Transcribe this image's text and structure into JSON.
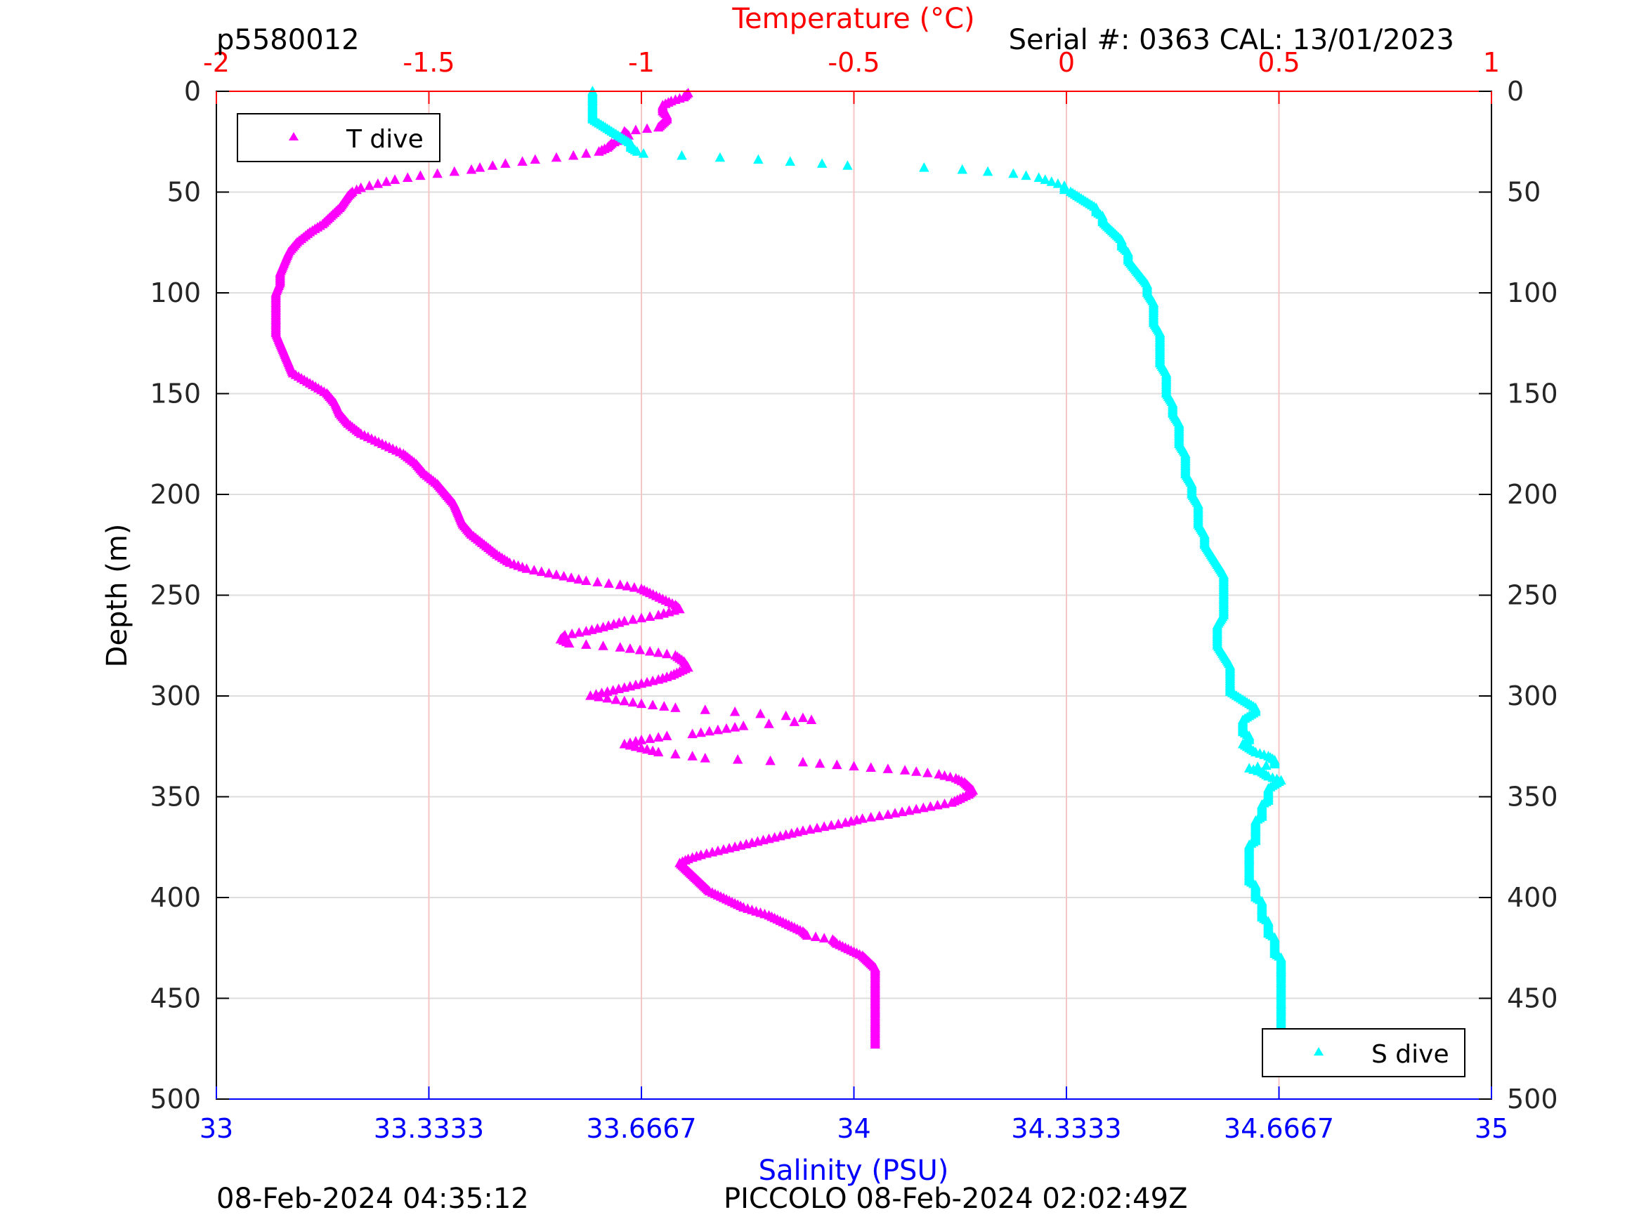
{
  "header": {
    "profile_id": "p5580012",
    "serial_cal": "Serial #: 0363  CAL: 13/01/2023"
  },
  "footer": {
    "left_timestamp": "08-Feb-2024 04:35:12",
    "right_text": "PICCOLO 08-Feb-2024 02:02:49Z"
  },
  "colors": {
    "temperature": "#ff00ff",
    "salinity": "#00ffff",
    "top_axis": "#ff0000",
    "bottom_axis": "#0000ff",
    "grid_v": "#f5c6c6",
    "grid_h": "#dddddd"
  },
  "chart_data": {
    "type": "scatter",
    "grid": true,
    "ylabel": "Depth (m)",
    "y_axis": {
      "range": [
        0,
        500
      ],
      "reversed": true,
      "ticks": [
        0,
        50,
        100,
        150,
        200,
        250,
        300,
        350,
        400,
        450,
        500
      ],
      "tick_labels": [
        "0",
        "50",
        "100",
        "150",
        "200",
        "250",
        "300",
        "350",
        "400",
        "450",
        "500"
      ]
    },
    "x_top": {
      "label": "Temperature (°C)",
      "range": [
        -2,
        1
      ],
      "ticks": [
        -2,
        -1.5,
        -1,
        -0.5,
        0,
        0.5,
        1
      ],
      "tick_labels": [
        "-2",
        "-1.5",
        "-1",
        "-0.5",
        "0",
        "0.5",
        "1"
      ]
    },
    "x_bottom": {
      "label": "Salinity (PSU)",
      "range": [
        33,
        35
      ],
      "ticks": [
        33,
        33.3333,
        33.6667,
        34,
        34.3333,
        34.6667,
        35
      ],
      "tick_labels": [
        "33",
        "33.3333",
        "33.6667",
        "34",
        "34.3333",
        "34.6667",
        "35"
      ]
    },
    "legends": [
      {
        "label": "T dive",
        "placement": "top-left"
      },
      {
        "label": "S dive",
        "placement": "bottom-right"
      }
    ],
    "series": [
      {
        "name": "T dive",
        "axis": "temperature",
        "marker": "triangle",
        "depth": [
          1,
          3,
          5,
          7,
          9,
          10,
          12,
          14,
          16,
          18,
          20,
          22,
          24,
          26,
          28,
          30,
          31,
          32,
          33,
          34,
          35,
          36,
          37,
          38,
          39,
          40,
          41,
          42,
          43,
          44,
          45,
          46,
          47,
          48,
          49,
          50,
          52,
          55,
          58,
          62,
          66,
          70,
          75,
          80,
          85,
          90,
          95,
          100,
          105,
          110,
          115,
          120,
          125,
          130,
          135,
          140,
          145,
          150,
          155,
          160,
          165,
          170,
          175,
          180,
          185,
          190,
          195,
          200,
          205,
          210,
          215,
          220,
          225,
          230,
          234,
          237,
          240,
          243,
          245,
          247,
          249,
          252,
          255,
          257,
          260,
          263,
          266,
          268,
          270,
          272,
          274,
          276,
          278,
          280,
          283,
          286,
          288,
          290,
          292,
          294,
          296,
          298,
          300,
          302,
          304,
          306,
          307,
          308,
          309,
          310,
          311,
          312,
          313,
          314,
          315,
          317,
          319,
          320,
          322,
          324,
          326,
          328,
          329,
          330,
          331,
          333,
          335,
          337,
          339,
          341,
          343,
          345,
          347,
          349,
          351,
          353,
          355,
          357,
          359,
          361,
          363,
          365,
          367,
          369,
          371,
          373,
          375,
          377,
          379,
          381,
          383,
          385,
          387,
          389,
          391,
          393,
          395,
          397,
          399,
          401,
          403,
          405,
          407,
          409,
          411,
          413,
          415,
          417,
          419,
          421,
          423,
          425,
          427,
          429,
          431,
          433,
          435,
          437,
          440,
          443,
          446,
          449,
          452,
          455,
          458,
          461,
          464,
          467,
          470,
          473,
          475
        ],
        "values": [
          -0.89,
          -0.9,
          -0.93,
          -0.95,
          -0.95,
          -0.95,
          -0.94,
          -0.94,
          -0.95,
          -0.96,
          -1.04,
          -1.03,
          -1.05,
          -1.07,
          -1.08,
          -1.1,
          -1.13,
          -1.16,
          -1.2,
          -1.25,
          -1.28,
          -1.32,
          -1.35,
          -1.38,
          -1.4,
          -1.44,
          -1.48,
          -1.52,
          -1.55,
          -1.58,
          -1.6,
          -1.62,
          -1.64,
          -1.66,
          -1.67,
          -1.68,
          -1.69,
          -1.7,
          -1.71,
          -1.73,
          -1.75,
          -1.78,
          -1.81,
          -1.83,
          -1.84,
          -1.85,
          -1.85,
          -1.86,
          -1.86,
          -1.86,
          -1.86,
          -1.86,
          -1.85,
          -1.84,
          -1.83,
          -1.82,
          -1.78,
          -1.74,
          -1.72,
          -1.71,
          -1.69,
          -1.66,
          -1.61,
          -1.56,
          -1.53,
          -1.51,
          -1.48,
          -1.46,
          -1.44,
          -1.43,
          -1.42,
          -1.4,
          -1.37,
          -1.34,
          -1.31,
          -1.27,
          -1.2,
          -1.13,
          -1.05,
          -1.0,
          -0.98,
          -0.95,
          -0.92,
          -0.91,
          -0.96,
          -1.04,
          -1.09,
          -1.13,
          -1.18,
          -1.19,
          -1.17,
          -1.05,
          -0.98,
          -0.92,
          -0.9,
          -0.89,
          -0.91,
          -0.93,
          -0.96,
          -1.0,
          -1.04,
          -1.08,
          -1.12,
          -1.06,
          -1.0,
          -0.92,
          -0.85,
          -0.78,
          -0.72,
          -0.66,
          -0.62,
          -0.6,
          -0.64,
          -0.7,
          -0.76,
          -0.82,
          -0.88,
          -0.94,
          -1.0,
          -1.04,
          -1.0,
          -0.96,
          -0.92,
          -0.88,
          -0.85,
          -0.62,
          -0.5,
          -0.38,
          -0.3,
          -0.26,
          -0.24,
          -0.23,
          -0.22,
          -0.23,
          -0.25,
          -0.27,
          -0.32,
          -0.37,
          -0.42,
          -0.48,
          -0.52,
          -0.57,
          -0.62,
          -0.66,
          -0.7,
          -0.74,
          -0.78,
          -0.82,
          -0.86,
          -0.89,
          -0.91,
          -0.9,
          -0.89,
          -0.88,
          -0.87,
          -0.86,
          -0.85,
          -0.84,
          -0.82,
          -0.8,
          -0.78,
          -0.76,
          -0.73,
          -0.7,
          -0.68,
          -0.66,
          -0.64,
          -0.62,
          -0.61,
          -0.55,
          -0.54,
          -0.52,
          -0.5,
          -0.48,
          -0.47,
          -0.46,
          -0.45,
          -0.45,
          -0.45,
          -0.45,
          -0.45,
          -0.45,
          -0.45,
          -0.45,
          -0.45,
          -0.45,
          -0.45,
          -0.45,
          -0.45,
          -0.45
        ]
      },
      {
        "name": "S dive",
        "axis": "salinity",
        "marker": "triangle",
        "depth": [
          0,
          2,
          4,
          6,
          8,
          10,
          12,
          14,
          16,
          18,
          20,
          22,
          24,
          26,
          28,
          30,
          31,
          32,
          33,
          34,
          35,
          36,
          37,
          38,
          39,
          40,
          41,
          42,
          43,
          44,
          45,
          46,
          47,
          48,
          49,
          50,
          52,
          54,
          56,
          58,
          60,
          62,
          65,
          68,
          71,
          74,
          77,
          80,
          84,
          88,
          92,
          96,
          100,
          105,
          110,
          115,
          120,
          125,
          130,
          135,
          140,
          145,
          150,
          155,
          160,
          165,
          170,
          175,
          180,
          185,
          190,
          195,
          200,
          205,
          210,
          215,
          220,
          225,
          230,
          235,
          240,
          245,
          250,
          255,
          260,
          265,
          270,
          275,
          280,
          285,
          290,
          295,
          298,
          300,
          302,
          304,
          306,
          308,
          310,
          312,
          314,
          316,
          318,
          320,
          322,
          324,
          326,
          328,
          330,
          332,
          334,
          336,
          338,
          340,
          342,
          344,
          346,
          348,
          350,
          352,
          354,
          356,
          358,
          360,
          362,
          364,
          366,
          368,
          370,
          372,
          374,
          376,
          378,
          380,
          382,
          384,
          386,
          388,
          390,
          392,
          394,
          396,
          398,
          400,
          402,
          404,
          406,
          408,
          410,
          412,
          414,
          416,
          418,
          420,
          422,
          424,
          426,
          428,
          430,
          432,
          434,
          436,
          438,
          440,
          443,
          446,
          449,
          452,
          455,
          458,
          461,
          464,
          467,
          470,
          473,
          475
        ],
        "values": [
          33.59,
          33.59,
          33.59,
          33.59,
          33.59,
          33.59,
          33.59,
          33.59,
          33.6,
          33.61,
          33.62,
          33.63,
          33.64,
          33.65,
          33.65,
          33.66,
          33.67,
          33.73,
          33.79,
          33.85,
          33.9,
          33.95,
          33.99,
          34.11,
          34.17,
          34.21,
          34.25,
          34.27,
          34.29,
          34.3,
          34.31,
          34.32,
          34.33,
          34.33,
          34.33,
          34.34,
          34.35,
          34.36,
          34.37,
          34.38,
          34.38,
          34.39,
          34.39,
          34.4,
          34.41,
          34.42,
          34.42,
          34.43,
          34.43,
          34.44,
          34.45,
          34.46,
          34.46,
          34.47,
          34.47,
          34.47,
          34.48,
          34.48,
          34.48,
          34.48,
          34.49,
          34.49,
          34.49,
          34.5,
          34.5,
          34.51,
          34.51,
          34.51,
          34.52,
          34.52,
          34.52,
          34.53,
          34.53,
          34.54,
          34.54,
          34.54,
          34.55,
          34.55,
          34.56,
          34.57,
          34.58,
          34.58,
          34.58,
          34.58,
          34.58,
          34.57,
          34.57,
          34.57,
          34.58,
          34.59,
          34.59,
          34.59,
          34.59,
          34.6,
          34.61,
          34.62,
          34.63,
          34.63,
          34.62,
          34.61,
          34.61,
          34.61,
          34.61,
          34.62,
          34.62,
          34.61,
          34.62,
          34.63,
          34.65,
          34.66,
          34.66,
          34.62,
          34.64,
          34.65,
          34.67,
          34.66,
          34.65,
          34.65,
          34.65,
          34.65,
          34.64,
          34.64,
          34.64,
          34.64,
          34.63,
          34.63,
          34.63,
          34.63,
          34.63,
          34.63,
          34.62,
          34.62,
          34.62,
          34.62,
          34.62,
          34.62,
          34.62,
          34.62,
          34.62,
          34.62,
          34.63,
          34.63,
          34.63,
          34.63,
          34.64,
          34.64,
          34.64,
          34.64,
          34.64,
          34.65,
          34.65,
          34.65,
          34.65,
          34.66,
          34.66,
          34.66,
          34.66,
          34.66,
          34.67,
          34.67,
          34.67,
          34.67,
          34.67,
          34.67,
          34.67,
          34.67,
          34.67,
          34.67,
          34.67,
          34.67,
          34.67,
          34.67,
          34.67,
          34.67,
          34.67,
          34.67
        ]
      }
    ]
  }
}
